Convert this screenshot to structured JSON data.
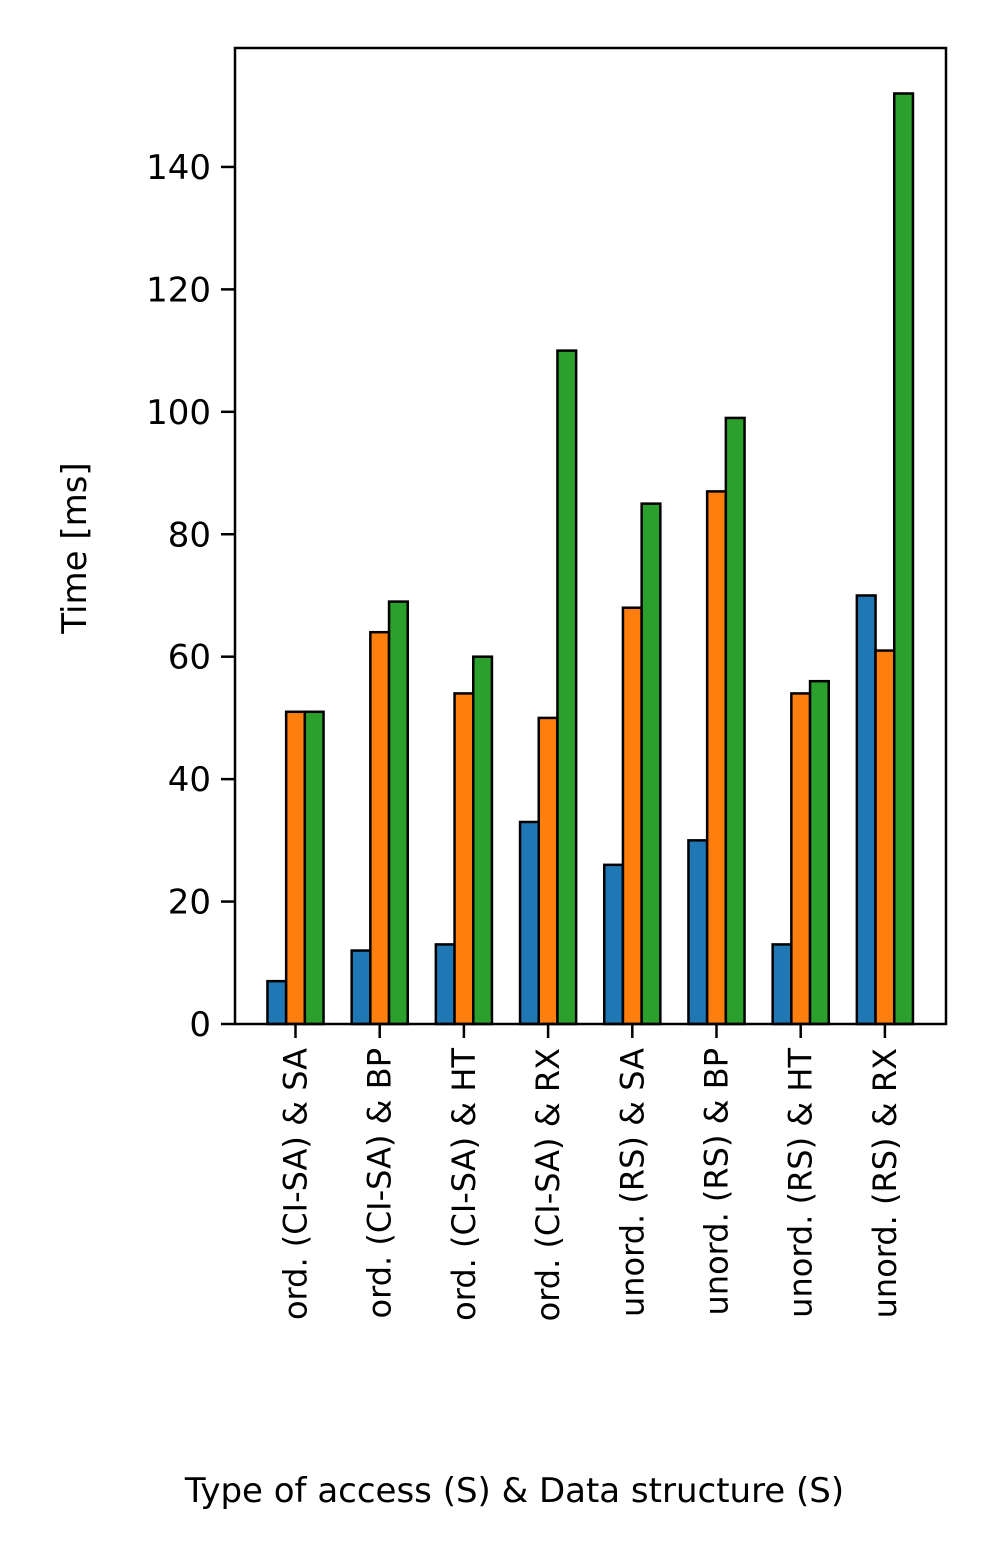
{
  "chart_data": {
    "type": "bar",
    "title": "",
    "xlabel": "Type of access (S) & Data structure (S)",
    "ylabel": "Time [ms]",
    "ylim": [
      0,
      160
    ],
    "yticks": [
      0,
      20,
      40,
      60,
      80,
      100,
      120,
      140
    ],
    "grid": false,
    "legend": "none",
    "categories": [
      "ord. (CI-SA) & SA",
      "ord. (CI-SA) & BP",
      "ord. (CI-SA) & HT",
      "ord. (CI-SA) & RX",
      "unord. (RS) & SA",
      "unord. (RS) & BP",
      "unord. (RS) & HT",
      "unord. (RS) & RX"
    ],
    "series": [
      {
        "color": "#1f77b4",
        "values": [
          7,
          12,
          13,
          33,
          26,
          30,
          13,
          70
        ]
      },
      {
        "color": "#ff7f0e",
        "values": [
          51,
          64,
          54,
          50,
          68,
          87,
          54,
          61
        ]
      },
      {
        "color": "#2ca02c",
        "values": [
          51,
          69,
          60,
          110,
          85,
          99,
          56,
          152
        ]
      }
    ]
  }
}
